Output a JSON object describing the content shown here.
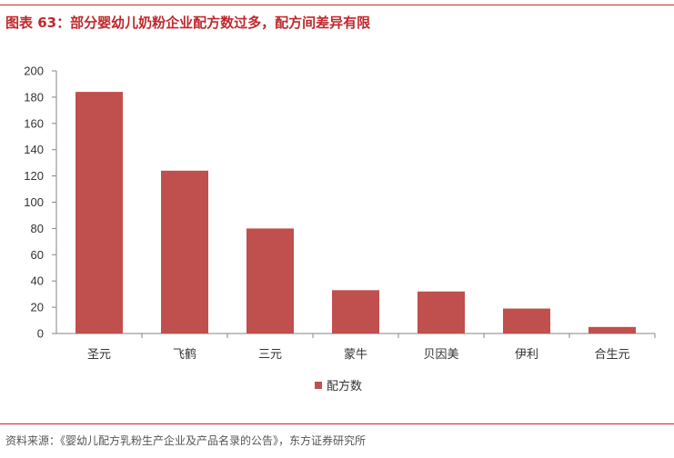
{
  "title": "图表 63：部分婴幼儿奶粉企业配方数过多，配方间差异有限",
  "source": "资料来源：《婴幼儿配方乳粉生产企业及产品名录的公告》，东方证券研究所",
  "colors": {
    "accent": "#c0282d",
    "bar": "#c0504d",
    "axis": "#868686"
  },
  "chart_data": {
    "type": "bar",
    "title": "",
    "xlabel": "",
    "ylabel": "",
    "categories": [
      "圣元",
      "飞鹤",
      "三元",
      "蒙牛",
      "贝因美",
      "伊利",
      "合生元"
    ],
    "series": [
      {
        "name": "配方数",
        "values": [
          184,
          124,
          80,
          33,
          32,
          19,
          5
        ]
      }
    ],
    "ylim": [
      0,
      200
    ],
    "yticks": [
      0,
      20,
      40,
      60,
      80,
      100,
      120,
      140,
      160,
      180,
      200
    ],
    "grid": false,
    "legend_position": "bottom"
  }
}
